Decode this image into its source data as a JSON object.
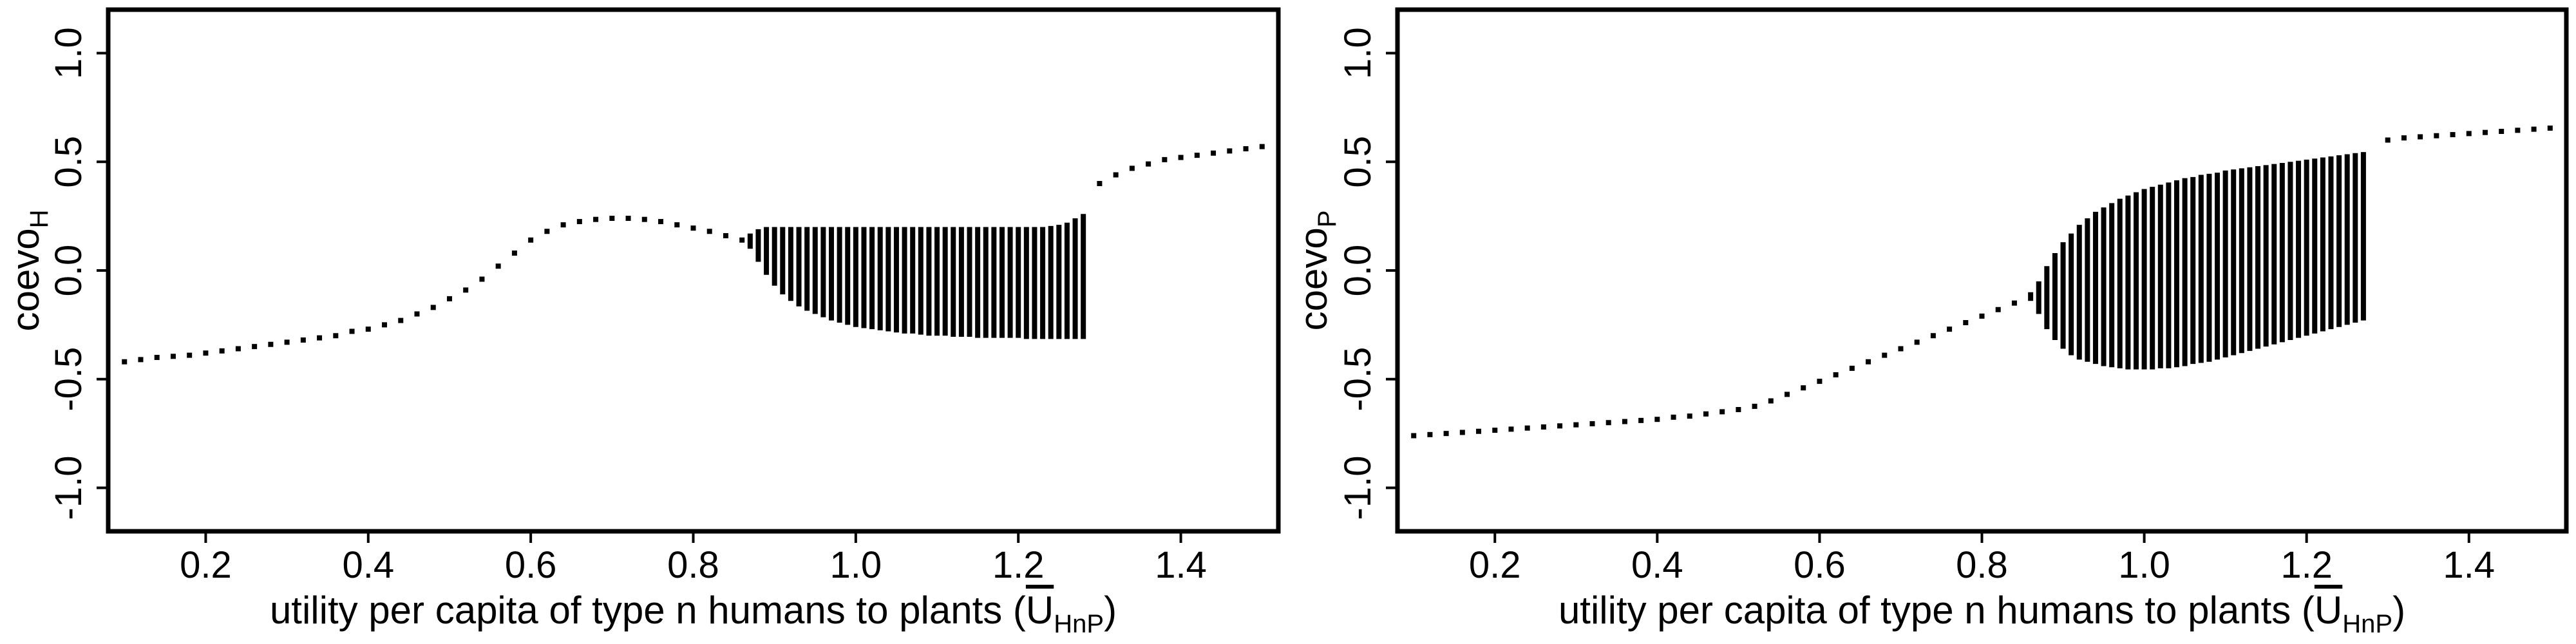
{
  "chart_data": [
    {
      "type": "scatter",
      "title": "",
      "xlabel": "utility per capita of type n humans to plants (U̅HnP)",
      "xlabel_main": "utility per capita of type n humans to plants (",
      "xlabel_symbol": "U",
      "xlabel_sub": "HnP",
      "xlabel_end": ")",
      "ylabel": "coevoH",
      "ylabel_main": "coevo",
      "ylabel_sub": "H",
      "xlim": [
        0.08,
        1.52
      ],
      "ylim": [
        -1.2,
        1.2
      ],
      "xticks": [
        0.2,
        0.4,
        0.6,
        0.8,
        1.0,
        1.2,
        1.4
      ],
      "xtick_labels": [
        "0.2",
        "0.4",
        "0.6",
        "0.8",
        "1.0",
        "1.2",
        "1.4"
      ],
      "yticks": [
        -1.0,
        -0.5,
        0.0,
        0.5,
        1.0
      ],
      "ytick_labels": [
        "-1.0",
        "-0.5",
        "0.0",
        "0.5",
        "1.0"
      ],
      "grid": false,
      "legend": "none",
      "color": "#000000",
      "single_points": {
        "x": [
          0.1,
          0.12,
          0.14,
          0.16,
          0.18,
          0.2,
          0.22,
          0.24,
          0.26,
          0.28,
          0.3,
          0.32,
          0.34,
          0.36,
          0.38,
          0.4,
          0.42,
          0.44,
          0.46,
          0.48,
          0.5,
          0.52,
          0.54,
          0.56,
          0.58,
          0.6,
          0.62,
          0.64,
          0.66,
          0.68,
          0.7,
          0.72,
          0.74,
          0.76,
          0.78,
          0.8,
          0.82,
          0.84,
          0.86,
          1.3,
          1.32,
          1.34,
          1.36,
          1.38,
          1.4,
          1.42,
          1.44,
          1.46,
          1.48,
          1.5
        ],
        "y": [
          -0.42,
          -0.41,
          -0.4,
          -0.395,
          -0.39,
          -0.38,
          -0.37,
          -0.36,
          -0.35,
          -0.34,
          -0.33,
          -0.32,
          -0.31,
          -0.3,
          -0.28,
          -0.27,
          -0.25,
          -0.23,
          -0.2,
          -0.17,
          -0.13,
          -0.09,
          -0.04,
          0.02,
          0.08,
          0.14,
          0.18,
          0.21,
          0.225,
          0.235,
          0.24,
          0.24,
          0.235,
          0.225,
          0.21,
          0.195,
          0.18,
          0.16,
          0.14,
          0.4,
          0.44,
          0.47,
          0.49,
          0.51,
          0.52,
          0.53,
          0.54,
          0.55,
          0.56,
          0.57
        ]
      },
      "range_bars": {
        "x": [
          0.87,
          0.88,
          0.89,
          0.9,
          0.91,
          0.92,
          0.93,
          0.94,
          0.95,
          0.96,
          0.97,
          0.98,
          0.99,
          1.0,
          1.01,
          1.02,
          1.03,
          1.04,
          1.05,
          1.06,
          1.07,
          1.08,
          1.09,
          1.1,
          1.11,
          1.12,
          1.13,
          1.14,
          1.15,
          1.16,
          1.17,
          1.18,
          1.19,
          1.2,
          1.21,
          1.22,
          1.23,
          1.24,
          1.25,
          1.26,
          1.27,
          1.28
        ],
        "ymin": [
          0.1,
          0.04,
          -0.02,
          -0.07,
          -0.11,
          -0.14,
          -0.165,
          -0.185,
          -0.2,
          -0.215,
          -0.23,
          -0.24,
          -0.25,
          -0.26,
          -0.265,
          -0.27,
          -0.275,
          -0.28,
          -0.285,
          -0.29,
          -0.29,
          -0.295,
          -0.3,
          -0.3,
          -0.3,
          -0.305,
          -0.305,
          -0.305,
          -0.31,
          -0.31,
          -0.31,
          -0.31,
          -0.31,
          -0.31,
          -0.315,
          -0.315,
          -0.315,
          -0.315,
          -0.315,
          -0.315,
          -0.315,
          -0.315
        ],
        "ymax": [
          0.17,
          0.19,
          0.2,
          0.2,
          0.2,
          0.2,
          0.2,
          0.2,
          0.2,
          0.2,
          0.2,
          0.2,
          0.2,
          0.2,
          0.2,
          0.2,
          0.2,
          0.2,
          0.2,
          0.2,
          0.2,
          0.2,
          0.2,
          0.2,
          0.2,
          0.2,
          0.2,
          0.2,
          0.2,
          0.2,
          0.2,
          0.2,
          0.2,
          0.2,
          0.2,
          0.2,
          0.2,
          0.205,
          0.21,
          0.22,
          0.24,
          0.26
        ]
      }
    },
    {
      "type": "scatter",
      "title": "",
      "xlabel": "utility per capita of type n humans to plants (U̅HnP)",
      "xlabel_main": "utility per capita of type n humans to plants (",
      "xlabel_symbol": "U",
      "xlabel_sub": "HnP",
      "xlabel_end": ")",
      "ylabel": "coevoP",
      "ylabel_main": "coevo",
      "ylabel_sub": "P",
      "xlim": [
        0.08,
        1.52
      ],
      "ylim": [
        -1.2,
        1.2
      ],
      "xticks": [
        0.2,
        0.4,
        0.6,
        0.8,
        1.0,
        1.2,
        1.4
      ],
      "xtick_labels": [
        "0.2",
        "0.4",
        "0.6",
        "0.8",
        "1.0",
        "1.2",
        "1.4"
      ],
      "yticks": [
        -1.0,
        -0.5,
        0.0,
        0.5,
        1.0
      ],
      "ytick_labels": [
        "-1.0",
        "-0.5",
        "0.0",
        "0.5",
        "1.0"
      ],
      "grid": false,
      "legend": "none",
      "color": "#000000",
      "single_points": {
        "x": [
          0.1,
          0.12,
          0.14,
          0.16,
          0.18,
          0.2,
          0.22,
          0.24,
          0.26,
          0.28,
          0.3,
          0.32,
          0.34,
          0.36,
          0.38,
          0.4,
          0.42,
          0.44,
          0.46,
          0.48,
          0.5,
          0.52,
          0.54,
          0.56,
          0.58,
          0.6,
          0.62,
          0.64,
          0.66,
          0.68,
          0.7,
          0.72,
          0.74,
          0.76,
          0.78,
          0.8,
          0.82,
          0.84,
          1.3,
          1.32,
          1.34,
          1.36,
          1.38,
          1.4,
          1.42,
          1.44,
          1.46,
          1.48,
          1.5
        ],
        "y": [
          -0.76,
          -0.755,
          -0.75,
          -0.745,
          -0.74,
          -0.735,
          -0.73,
          -0.725,
          -0.72,
          -0.715,
          -0.71,
          -0.705,
          -0.7,
          -0.695,
          -0.69,
          -0.685,
          -0.675,
          -0.67,
          -0.66,
          -0.65,
          -0.64,
          -0.625,
          -0.6,
          -0.57,
          -0.54,
          -0.51,
          -0.48,
          -0.45,
          -0.42,
          -0.39,
          -0.36,
          -0.33,
          -0.3,
          -0.27,
          -0.24,
          -0.21,
          -0.18,
          -0.15,
          0.6,
          0.61,
          0.615,
          0.62,
          0.625,
          0.63,
          0.635,
          0.64,
          0.645,
          0.65,
          0.655
        ]
      },
      "range_bars": {
        "x": [
          0.86,
          0.87,
          0.88,
          0.89,
          0.9,
          0.91,
          0.92,
          0.93,
          0.94,
          0.95,
          0.96,
          0.97,
          0.98,
          0.99,
          1.0,
          1.01,
          1.02,
          1.03,
          1.04,
          1.05,
          1.06,
          1.07,
          1.08,
          1.09,
          1.1,
          1.11,
          1.12,
          1.13,
          1.14,
          1.15,
          1.16,
          1.17,
          1.18,
          1.19,
          1.2,
          1.21,
          1.22,
          1.23,
          1.24,
          1.25,
          1.26,
          1.27
        ],
        "ymin": [
          -0.14,
          -0.2,
          -0.27,
          -0.32,
          -0.36,
          -0.39,
          -0.41,
          -0.42,
          -0.43,
          -0.44,
          -0.445,
          -0.45,
          -0.455,
          -0.455,
          -0.455,
          -0.455,
          -0.45,
          -0.45,
          -0.445,
          -0.44,
          -0.43,
          -0.425,
          -0.42,
          -0.41,
          -0.4,
          -0.39,
          -0.38,
          -0.37,
          -0.36,
          -0.35,
          -0.34,
          -0.33,
          -0.32,
          -0.31,
          -0.3,
          -0.29,
          -0.28,
          -0.27,
          -0.26,
          -0.25,
          -0.24,
          -0.23
        ],
        "ymax": [
          -0.1,
          -0.05,
          0.02,
          0.08,
          0.13,
          0.17,
          0.21,
          0.24,
          0.27,
          0.29,
          0.31,
          0.33,
          0.345,
          0.36,
          0.375,
          0.385,
          0.395,
          0.405,
          0.415,
          0.425,
          0.43,
          0.44,
          0.445,
          0.45,
          0.46,
          0.465,
          0.47,
          0.475,
          0.48,
          0.485,
          0.49,
          0.495,
          0.5,
          0.505,
          0.51,
          0.515,
          0.52,
          0.525,
          0.53,
          0.535,
          0.54,
          0.545
        ]
      }
    }
  ]
}
